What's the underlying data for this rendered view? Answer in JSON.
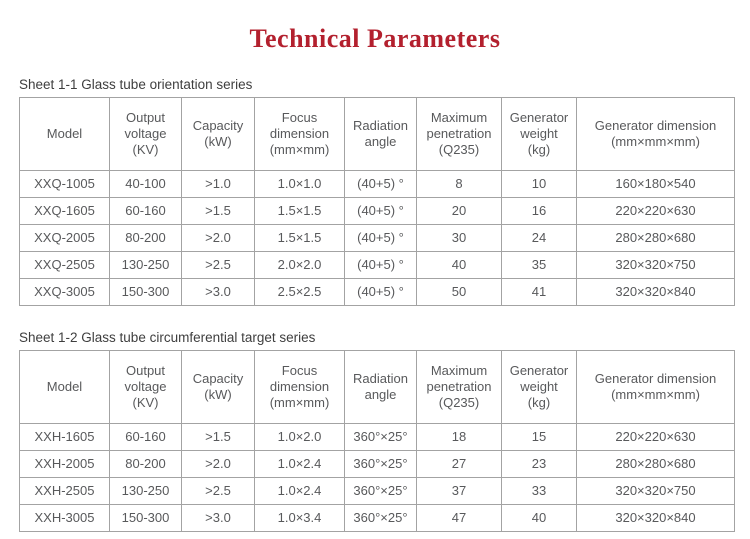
{
  "page": {
    "title": "Technical Parameters",
    "title_color": "#b3202e",
    "table_border_color": "#a3a3a3",
    "table_text_color": "#58595b"
  },
  "tables": [
    {
      "caption": "Sheet 1-1 Glass tube orientation series",
      "columns": [
        "Model",
        "Output\nvoltage\n(KV)",
        "Capacity\n(kW)",
        "Focus\ndimension\n(mm×mm)",
        "Radiation\nangle",
        "Maximum\npenetration\n(Q235)",
        "Generator\nweight\n(kg)",
        "Generator dimension\n(mm×mm×mm)"
      ],
      "rows": [
        [
          "XXQ-1005",
          "40-100",
          ">1.0",
          "1.0×1.0",
          "(40+5) °",
          "8",
          "10",
          "160×180×540"
        ],
        [
          "XXQ-1605",
          "60-160",
          ">1.5",
          "1.5×1.5",
          "(40+5) °",
          "20",
          "16",
          "220×220×630"
        ],
        [
          "XXQ-2005",
          "80-200",
          ">2.0",
          "1.5×1.5",
          "(40+5) °",
          "30",
          "24",
          "280×280×680"
        ],
        [
          "XXQ-2505",
          "130-250",
          ">2.5",
          "2.0×2.0",
          "(40+5) °",
          "40",
          "35",
          "320×320×750"
        ],
        [
          "XXQ-3005",
          "150-300",
          ">3.0",
          "2.5×2.5",
          "(40+5) °",
          "50",
          "41",
          "320×320×840"
        ]
      ]
    },
    {
      "caption": "Sheet 1-2 Glass tube circumferential target series",
      "columns": [
        "Model",
        "Output\nvoltage\n(KV)",
        "Capacity\n(kW)",
        "Focus\ndimension\n(mm×mm)",
        "Radiation\nangle",
        "Maximum\npenetration\n(Q235)",
        "Generator\nweight\n(kg)",
        "Generator dimension\n(mm×mm×mm)"
      ],
      "rows": [
        [
          "XXH-1605",
          "60-160",
          ">1.5",
          "1.0×2.0",
          "360°×25°",
          "18",
          "15",
          "220×220×630"
        ],
        [
          "XXH-2005",
          "80-200",
          ">2.0",
          "1.0×2.4",
          "360°×25°",
          "27",
          "23",
          "280×280×680"
        ],
        [
          "XXH-2505",
          "130-250",
          ">2.5",
          "1.0×2.4",
          "360°×25°",
          "37",
          "33",
          "320×320×750"
        ],
        [
          "XXH-3005",
          "150-300",
          ">3.0",
          "1.0×3.4",
          "360°×25°",
          "47",
          "40",
          "320×320×840"
        ]
      ]
    }
  ]
}
